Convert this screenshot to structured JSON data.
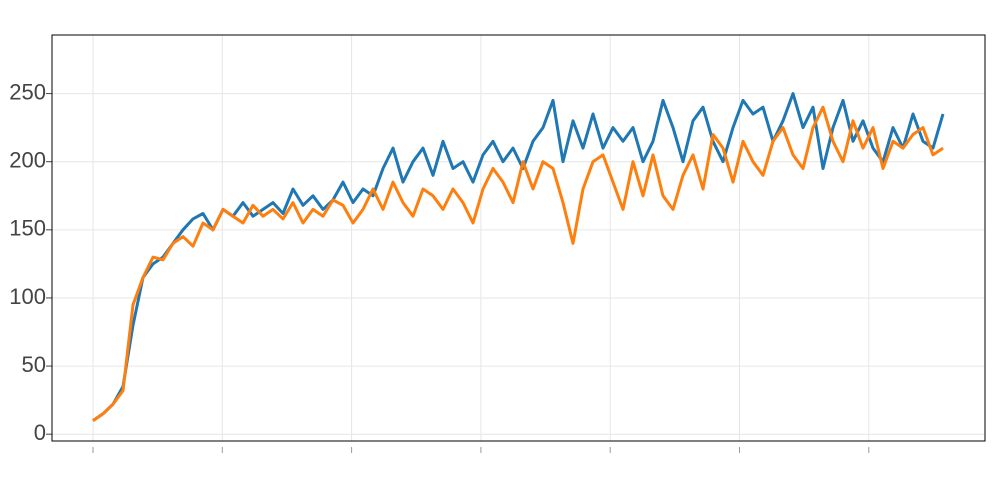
{
  "chart_data": {
    "type": "line",
    "ylim": [
      -5,
      293
    ],
    "yticks": [
      0,
      50,
      100,
      150,
      200,
      250
    ],
    "grid": true,
    "series": [
      {
        "color": "#1f77b4",
        "values": [
          10,
          15,
          22,
          35,
          80,
          115,
          125,
          130,
          140,
          150,
          158,
          162,
          150,
          165,
          160,
          170,
          160,
          165,
          170,
          162,
          180,
          168,
          175,
          165,
          172,
          185,
          170,
          180,
          175,
          195,
          210,
          185,
          200,
          210,
          190,
          215,
          195,
          200,
          185,
          205,
          215,
          200,
          210,
          195,
          215,
          225,
          245,
          200,
          230,
          210,
          235,
          210,
          225,
          215,
          225,
          200,
          215,
          245,
          225,
          200,
          230,
          240,
          215,
          200,
          225,
          245,
          235,
          240,
          215,
          230,
          250,
          225,
          240,
          195,
          225,
          245,
          215,
          230,
          210,
          200,
          225,
          210,
          235,
          215,
          210,
          235
        ]
      },
      {
        "color": "#ff7f0e",
        "values": [
          10,
          15,
          22,
          32,
          95,
          115,
          130,
          128,
          140,
          145,
          138,
          155,
          150,
          165,
          160,
          155,
          168,
          160,
          165,
          158,
          170,
          155,
          165,
          160,
          172,
          168,
          155,
          165,
          180,
          165,
          185,
          170,
          160,
          180,
          175,
          165,
          180,
          170,
          155,
          180,
          195,
          185,
          170,
          200,
          180,
          200,
          195,
          170,
          140,
          180,
          200,
          205,
          185,
          165,
          200,
          175,
          205,
          175,
          165,
          190,
          205,
          180,
          220,
          210,
          185,
          215,
          200,
          190,
          215,
          225,
          205,
          195,
          225,
          240,
          215,
          200,
          230,
          210,
          225,
          195,
          215,
          210,
          220,
          225,
          205,
          210
        ]
      }
    ]
  }
}
